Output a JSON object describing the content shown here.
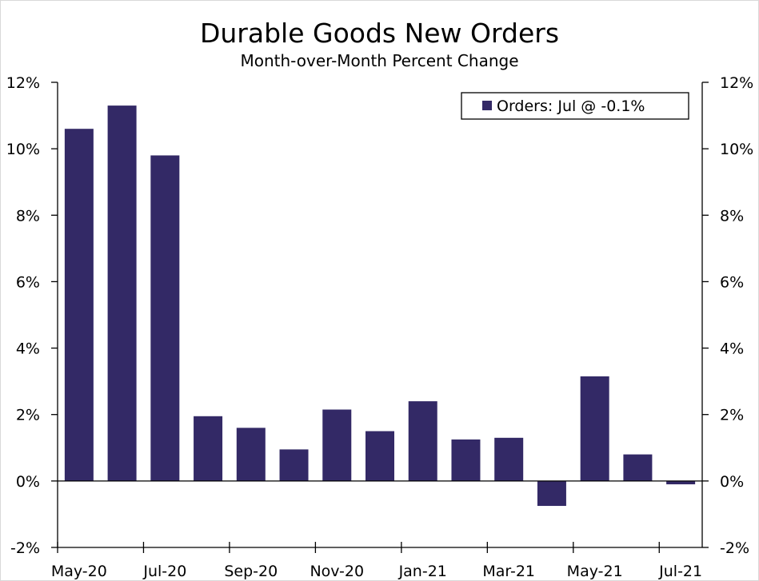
{
  "chart_data": {
    "type": "bar",
    "title": "Durable Goods New Orders",
    "subtitle": "Month-over-Month Percent Change",
    "xlabel": "",
    "ylabel": "",
    "categories": [
      "May-20",
      "Jun-20",
      "Jul-20",
      "Aug-20",
      "Sep-20",
      "Oct-20",
      "Nov-20",
      "Dec-20",
      "Jan-21",
      "Feb-21",
      "Mar-21",
      "Apr-21",
      "May-21",
      "Jun-21",
      "Jul-21"
    ],
    "x_tick_labels": [
      "May-20",
      "Jul-20",
      "Sep-20",
      "Nov-20",
      "Jan-21",
      "Mar-21",
      "May-21",
      "Jul-21"
    ],
    "series": [
      {
        "name": "Orders: Jul @ -0.1%",
        "color": "#332966",
        "values": [
          10.6,
          11.3,
          9.8,
          1.95,
          1.6,
          0.95,
          2.15,
          1.5,
          2.4,
          1.25,
          1.3,
          -0.75,
          3.15,
          0.8,
          -0.1
        ]
      }
    ],
    "ylim": [
      -2,
      12
    ],
    "y_ticks": [
      -2,
      0,
      2,
      4,
      6,
      8,
      10,
      12
    ],
    "y_tick_labels": [
      "-2%",
      "0%",
      "2%",
      "4%",
      "6%",
      "8%",
      "10%",
      "12%"
    ],
    "y_axis_both_sides": true,
    "grid": false,
    "legend_position": "top-right"
  }
}
